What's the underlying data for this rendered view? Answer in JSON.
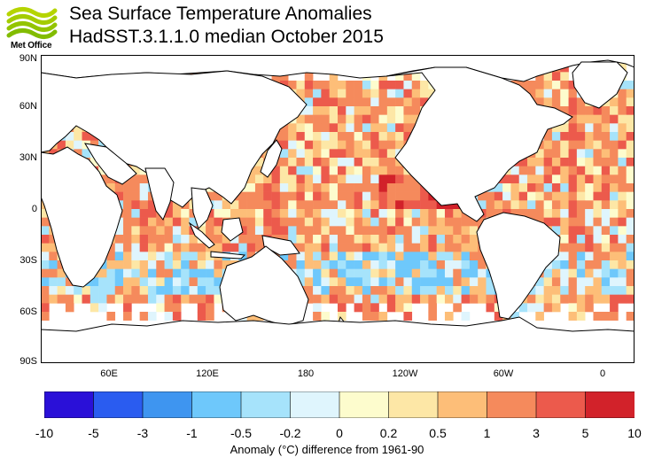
{
  "header": {
    "logo_text": "Met Office",
    "title_line1": "Sea Surface Temperature Anomalies",
    "title_line2": "HadSST.3.1.1.0 median October 2015"
  },
  "map": {
    "lat_labels": [
      "90N",
      "60N",
      "30N",
      "0",
      "30S",
      "60S",
      "90S"
    ],
    "lon_labels": [
      "60E",
      "120E",
      "180",
      "120W",
      "60W",
      "0"
    ]
  },
  "colorbar": {
    "tick_labels": [
      "-10",
      "-5",
      "-3",
      "-1",
      "-0.5",
      "-0.2",
      "0",
      "0.2",
      "0.5",
      "1",
      "3",
      "5",
      "10"
    ],
    "colors": [
      "#2a10d8",
      "#2a5cf0",
      "#3e95f0",
      "#6ec8fb",
      "#a6e3fb",
      "#dff5fd",
      "#fdfccd",
      "#fde7a6",
      "#fdbe78",
      "#f58a5c",
      "#ec5a4c",
      "#d2222a",
      "#a50b1c"
    ],
    "caption": "Anomaly (°C) difference from 1961-90"
  },
  "colors": {
    "land": "#ffffff",
    "coast": "#000000",
    "frame": "#000000"
  }
}
